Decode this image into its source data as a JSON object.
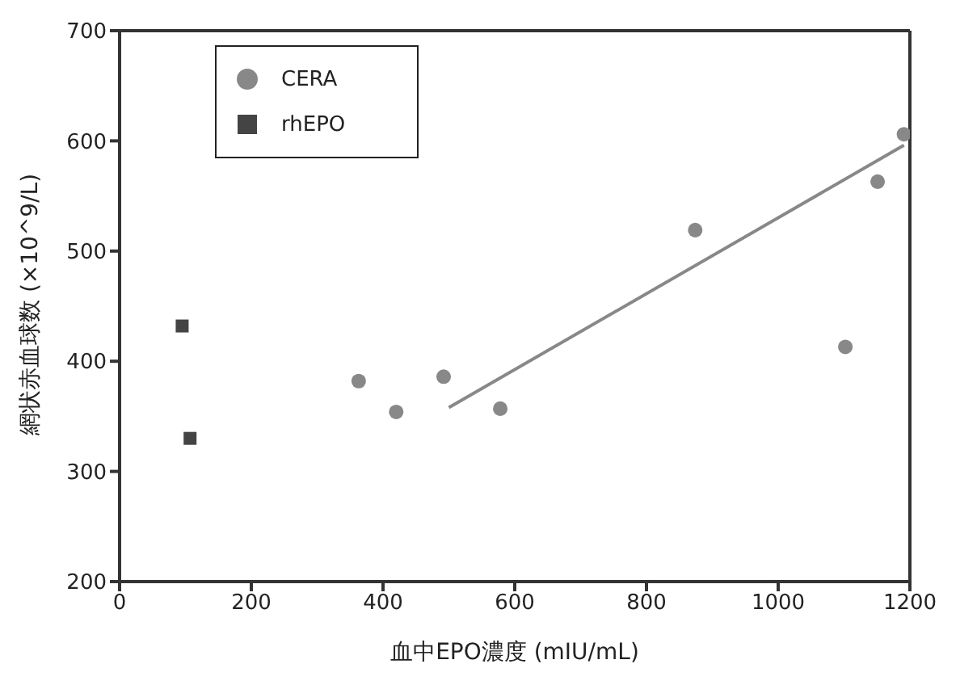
{
  "chart_data": {
    "type": "scatter",
    "xlabel": "血中EPO濃度 (mIU/mL)",
    "ylabel": "網状赤血球数 (×10^9/L)",
    "xlim": [
      0,
      1200
    ],
    "xticks": [
      0,
      200,
      400,
      600,
      800,
      1000,
      1200
    ],
    "ylim": [
      200,
      700
    ],
    "yticks": [
      200,
      300,
      400,
      500,
      600,
      700
    ],
    "grid": false,
    "legend": "top left",
    "series": [
      {
        "name": "CERA",
        "color": "#888888",
        "marker": "circle",
        "x": [
          363,
          420,
          492,
          578,
          874,
          1102,
          1151,
          1191
        ],
        "values": [
          382,
          354,
          386,
          357,
          519,
          413,
          563,
          606
        ]
      },
      {
        "name": "rhEPO",
        "color": "#444444",
        "marker": "square",
        "x": [
          95,
          107
        ],
        "values": [
          432,
          330
        ]
      },
      {
        "type": "line",
        "color": "#888888",
        "marker": "none",
        "x": [
          500,
          1191
        ],
        "values": [
          358,
          596
        ]
      }
    ]
  }
}
